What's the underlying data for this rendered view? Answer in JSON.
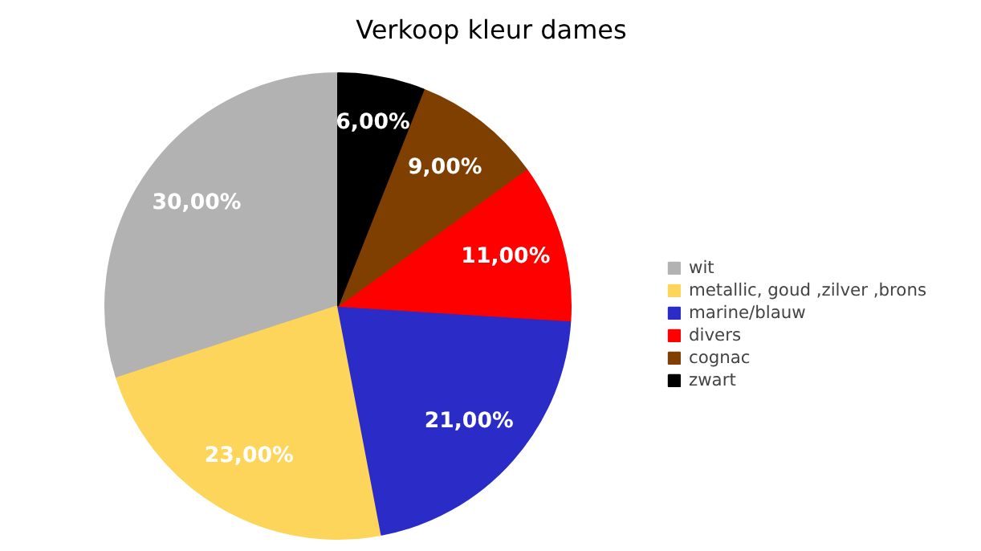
{
  "chart_data": {
    "type": "pie",
    "title": "Verkoop kleur dames",
    "categories": [
      "wit",
      "metallic, goud ,zilver ,brons",
      "marine/blauw",
      "divers",
      "cognac",
      "zwart"
    ],
    "values": [
      30,
      23,
      21,
      11,
      9,
      6
    ],
    "colors": [
      "#b2b2b2",
      "#fdd55a",
      "#2b2bc8",
      "#ff0000",
      "#7f3f00",
      "#000000"
    ],
    "value_labels": [
      "30,00%",
      "23,00%",
      "21,00%",
      "11,00%",
      "9,00%",
      "6,00%"
    ],
    "legend": "right"
  }
}
